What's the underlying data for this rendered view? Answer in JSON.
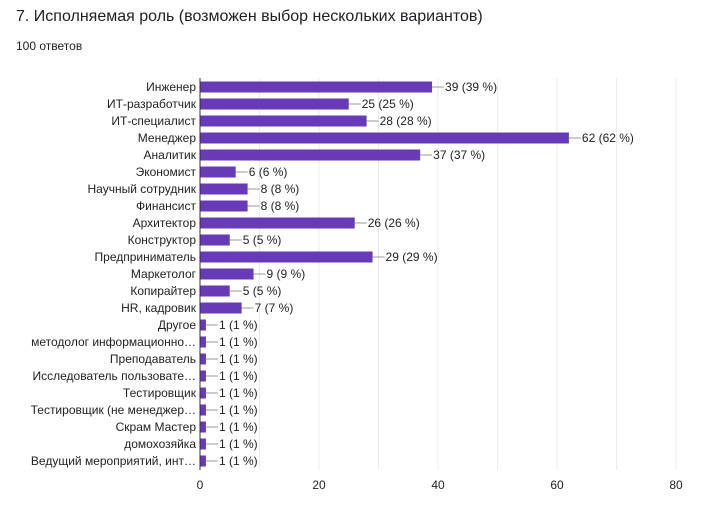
{
  "title": "7. Исполняемая роль (возможен выбор нескольких вариантов)",
  "responses": "100 ответов",
  "chart_data": {
    "type": "bar",
    "orientation": "horizontal",
    "categories": [
      "Инженер",
      "ИТ-разработчик",
      "ИТ-специалист",
      "Менеджер",
      "Аналитик",
      "Экономист",
      "Научный сотрудник",
      "Финансист",
      "Архитектор",
      "Конструктор",
      "Предприниматель",
      "Маркетолог",
      "Копирайтер",
      "HR, кадровик",
      "Другое",
      "методолог информационно…",
      "Преподаватель",
      "Исследователь пользовате…",
      "Тестировщик",
      "Тестировщик (не менеджер…",
      "Скрам Мастер",
      "домохозяйка",
      "Ведущий мероприятий, инт…"
    ],
    "values": [
      39,
      25,
      28,
      62,
      37,
      6,
      8,
      8,
      26,
      5,
      29,
      9,
      5,
      7,
      1,
      1,
      1,
      1,
      1,
      1,
      1,
      1,
      1
    ],
    "data_labels": [
      "39 (39 %)",
      "25 (25 %)",
      "28 (28 %)",
      "62 (62 %)",
      "37 (37 %)",
      "6 (6 %)",
      "8 (8 %)",
      "8 (8 %)",
      "26 (26 %)",
      "5 (5 %)",
      "29 (29 %)",
      "9 (9 %)",
      "5 (5 %)",
      "7 (7 %)",
      "1 (1 %)",
      "1 (1 %)",
      "1 (1 %)",
      "1 (1 %)",
      "1 (1 %)",
      "1 (1 %)",
      "1 (1 %)",
      "1 (1 %)",
      "1 (1 %)"
    ],
    "xlim": [
      0,
      80
    ],
    "xticks": [
      "0",
      "20",
      "40",
      "60",
      "80"
    ],
    "grid": true,
    "bar_color": "#673ab7"
  }
}
